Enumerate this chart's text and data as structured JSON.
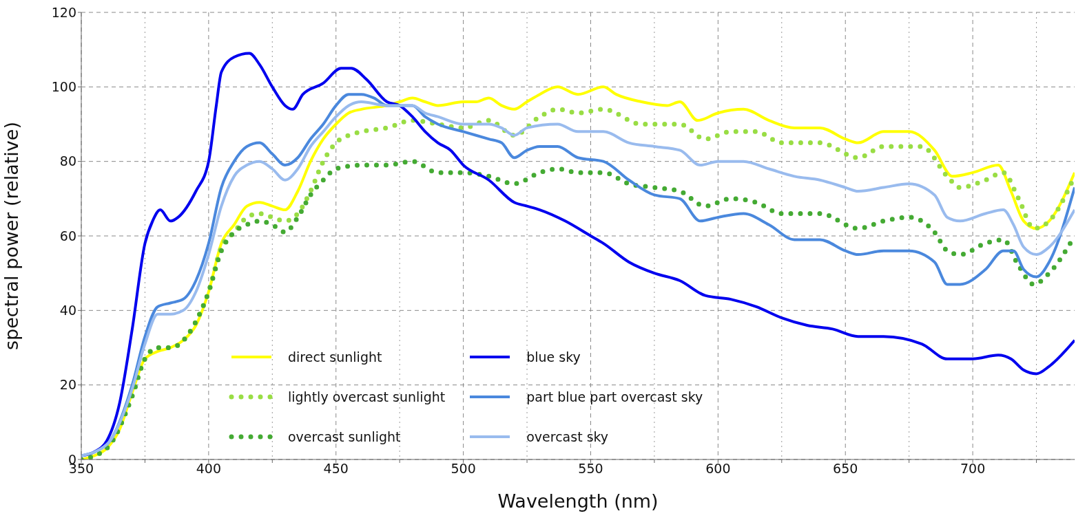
{
  "chart_data": {
    "type": "line",
    "xlabel": "Wavelength (nm)",
    "ylabel": "spectral power (relative)",
    "xlim": [
      350,
      740
    ],
    "xticks": [
      350,
      {
        "value": 375,
        "label": null
      },
      400,
      {
        "value": 425,
        "label": null
      },
      450,
      {
        "value": 475,
        "label": null
      },
      500,
      {
        "value": 525,
        "label": null
      },
      550,
      {
        "value": 575,
        "label": null
      },
      600,
      {
        "value": 625,
        "label": null
      },
      650,
      {
        "value": 675,
        "label": null
      },
      700,
      {
        "value": 725,
        "label": null
      }
    ],
    "ylim": [
      0,
      120
    ],
    "yticks": [
      0,
      20,
      40,
      60,
      80,
      100,
      120
    ],
    "grid": true,
    "legend": "bottom left",
    "series": [
      {
        "name": "direct sunlight",
        "color": "#ffff00",
        "line_style": "solid",
        "x": [
          350,
          355,
          360,
          365,
          370,
          375,
          380,
          385,
          390,
          395,
          400,
          405,
          410,
          415,
          420,
          425,
          430,
          435,
          440,
          445,
          450,
          455,
          460,
          470,
          475,
          480,
          485,
          490,
          500,
          505,
          510,
          515,
          520,
          525,
          530,
          537,
          545,
          555,
          560,
          570,
          580,
          585,
          592,
          600,
          610,
          620,
          630,
          640,
          650,
          655,
          665,
          675,
          685,
          692,
          700,
          710,
          715,
          720,
          725,
          730,
          740
        ],
        "values": [
          0,
          1,
          3,
          8,
          18,
          27,
          29,
          30,
          32,
          36,
          45,
          58,
          63,
          68,
          69,
          68,
          67,
          72,
          80,
          86,
          90,
          93,
          94,
          95,
          96,
          97,
          96,
          95,
          96,
          96,
          97,
          95,
          94,
          96,
          98,
          100,
          98,
          100,
          98,
          96,
          95,
          96,
          91,
          93,
          94,
          91,
          89,
          89,
          86,
          85,
          88,
          88,
          83,
          76,
          77,
          79,
          72,
          64,
          62,
          64,
          77
        ]
      },
      {
        "name": "lightly overcast sunlight",
        "color": "#99dd44",
        "line_style": "dotted",
        "x": [
          350,
          360,
          370,
          375,
          380,
          385,
          395,
          400,
          405,
          410,
          415,
          420,
          425,
          430,
          435,
          440,
          445,
          450,
          455,
          460,
          470,
          480,
          490,
          500,
          510,
          520,
          530,
          537,
          545,
          555,
          570,
          585,
          595,
          605,
          615,
          625,
          640,
          655,
          665,
          680,
          690,
          695,
          705,
          712,
          718,
          724,
          730,
          740
        ],
        "values": [
          0,
          3,
          18,
          27,
          30,
          30,
          37,
          45,
          57,
          61,
          65,
          66,
          65,
          64,
          66,
          72,
          80,
          85,
          87,
          88,
          89,
          91,
          90,
          89,
          91,
          87,
          92,
          94,
          93,
          94,
          90,
          90,
          86,
          88,
          88,
          85,
          85,
          81,
          84,
          84,
          76,
          73,
          75,
          77,
          70,
          62,
          64,
          76
        ]
      },
      {
        "name": "overcast sunlight",
        "color": "#44aa33",
        "line_style": "dotted",
        "x": [
          350,
          360,
          370,
          375,
          380,
          385,
          395,
          400,
          405,
          410,
          415,
          420,
          425,
          430,
          435,
          440,
          445,
          450,
          460,
          470,
          480,
          490,
          500,
          510,
          520,
          530,
          537,
          545,
          555,
          565,
          575,
          585,
          595,
          605,
          615,
          625,
          640,
          655,
          665,
          675,
          685,
          690,
          695,
          705,
          712,
          718,
          724,
          730,
          740
        ],
        "values": [
          0,
          3,
          17,
          27,
          30,
          30,
          37,
          45,
          56,
          61,
          63,
          64,
          63,
          61,
          65,
          71,
          75,
          78,
          79,
          79,
          80,
          77,
          77,
          76,
          74,
          77,
          78,
          77,
          77,
          74,
          73,
          72,
          68,
          70,
          69,
          66,
          66,
          62,
          64,
          65,
          61,
          56,
          55,
          58,
          59,
          52,
          47,
          50,
          60
        ]
      },
      {
        "name": "blue sky",
        "color": "#0000ee",
        "line_style": "solid",
        "x": [
          350,
          355,
          360,
          365,
          370,
          375,
          378,
          381,
          385,
          388,
          395,
          400,
          403,
          405,
          410,
          416,
          420,
          425,
          430,
          433,
          437,
          445,
          452,
          456,
          462,
          470,
          475,
          480,
          485,
          490,
          495,
          500,
          510,
          520,
          525,
          530,
          540,
          550,
          555,
          565,
          575,
          585,
          595,
          605,
          615,
          625,
          635,
          645,
          655,
          665,
          680,
          690,
          700,
          710,
          715,
          720,
          725,
          730,
          740
        ],
        "values": [
          1,
          2,
          5,
          15,
          35,
          58,
          64,
          67,
          64,
          65,
          72,
          80,
          95,
          104,
          108,
          109,
          106,
          100,
          95,
          94,
          98,
          101,
          105,
          105,
          102,
          96,
          95,
          92,
          88,
          85,
          83,
          79,
          75,
          69,
          68,
          67,
          64,
          60,
          58,
          53,
          50,
          48,
          44,
          43,
          41,
          38,
          36,
          35,
          33,
          33,
          31,
          27,
          27,
          28,
          27,
          24,
          23,
          25,
          32
        ]
      },
      {
        "name": "part blue part overcast sky",
        "color": "#4a88dd",
        "line_style": "solid",
        "x": [
          350,
          360,
          370,
          375,
          380,
          385,
          390,
          395,
          400,
          405,
          410,
          415,
          420,
          425,
          430,
          435,
          440,
          445,
          450,
          455,
          460,
          465,
          470,
          480,
          485,
          490,
          500,
          510,
          515,
          520,
          525,
          530,
          537,
          545,
          555,
          565,
          575,
          585,
          593,
          600,
          610,
          620,
          630,
          640,
          650,
          655,
          665,
          675,
          685,
          690,
          695,
          705,
          712,
          716,
          720,
          725,
          730,
          740
        ],
        "values": [
          1,
          4,
          20,
          33,
          41,
          42,
          43,
          48,
          58,
          73,
          80,
          84,
          85,
          82,
          79,
          81,
          86,
          90,
          95,
          98,
          98,
          97,
          95,
          95,
          92,
          90,
          88,
          86,
          85,
          81,
          83,
          84,
          84,
          81,
          80,
          75,
          71,
          70,
          64,
          65,
          66,
          63,
          59,
          59,
          56,
          55,
          56,
          56,
          53,
          47,
          47,
          51,
          56,
          56,
          51,
          49,
          53,
          73
        ]
      },
      {
        "name": "overcast sky",
        "color": "#99bbee",
        "line_style": "solid",
        "x": [
          350,
          360,
          370,
          375,
          380,
          385,
          390,
          395,
          400,
          405,
          410,
          415,
          420,
          425,
          430,
          435,
          440,
          445,
          450,
          455,
          460,
          470,
          480,
          485,
          490,
          500,
          510,
          515,
          520,
          525,
          537,
          545,
          555,
          565,
          575,
          585,
          593,
          600,
          610,
          620,
          630,
          640,
          650,
          655,
          665,
          675,
          685,
          690,
          695,
          705,
          712,
          716,
          720,
          725,
          730,
          740
        ],
        "values": [
          1,
          4,
          19,
          31,
          39,
          39,
          40,
          45,
          55,
          68,
          76,
          79,
          80,
          78,
          75,
          78,
          84,
          88,
          92,
          95,
          96,
          95,
          95,
          93,
          92,
          90,
          90,
          89,
          87,
          89,
          90,
          88,
          88,
          85,
          84,
          83,
          79,
          80,
          80,
          78,
          76,
          75,
          73,
          72,
          73,
          74,
          71,
          65,
          64,
          66,
          67,
          63,
          57,
          55,
          57,
          67
        ]
      }
    ]
  }
}
